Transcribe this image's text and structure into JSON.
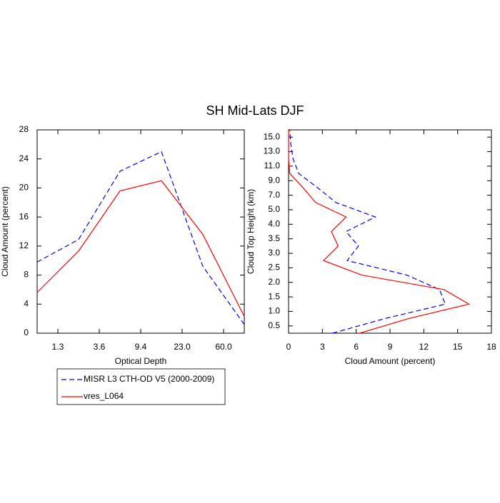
{
  "title": "SH Mid-Lats DJF",
  "chart_data": [
    {
      "type": "line",
      "orientation": "vertical",
      "xlabel": "Optical Depth",
      "ylabel": "Cloud Amount (percent)",
      "xlim": [
        0,
        5
      ],
      "xticks": [
        {
          "value": 0.5,
          "label": "1.3"
        },
        {
          "value": 1.5,
          "label": "3.6"
        },
        {
          "value": 2.5,
          "label": "9.4"
        },
        {
          "value": 3.5,
          "label": "23.0"
        },
        {
          "value": 4.5,
          "label": "60.0"
        }
      ],
      "ylim": [
        0,
        28
      ],
      "yticks": [
        0,
        4,
        8,
        12,
        16,
        20,
        24,
        28
      ],
      "grid": false,
      "series": [
        {
          "name": "MISR L3 CTH-OD V5 (2000-2009)",
          "color": "#0000ff",
          "linestyle": "dashed",
          "values": [
            9.8,
            12.9,
            22.3,
            25.0,
            9.2,
            1.2
          ]
        },
        {
          "name": "vres_L064",
          "color": "#ff0000",
          "linestyle": "solid",
          "values": [
            5.6,
            11.3,
            19.6,
            21.0,
            13.6,
            2.3
          ]
        }
      ]
    },
    {
      "type": "line",
      "orientation": "horizontal",
      "xlabel": "Cloud Amount (percent)",
      "ylabel": "Cloud Top Height (km)",
      "xlim": [
        0,
        18
      ],
      "xticks": [
        0,
        3,
        6,
        9,
        12,
        15,
        18
      ],
      "ylim": [
        0,
        14
      ],
      "yticks": [
        {
          "value": 0.5,
          "label": "0.5"
        },
        {
          "value": 1.5,
          "label": "1.0"
        },
        {
          "value": 2.5,
          "label": "1.5"
        },
        {
          "value": 3.5,
          "label": "2.0"
        },
        {
          "value": 4.5,
          "label": "2.5"
        },
        {
          "value": 5.5,
          "label": "3.0"
        },
        {
          "value": 6.5,
          "label": "3.5"
        },
        {
          "value": 7.5,
          "label": "4.0"
        },
        {
          "value": 8.5,
          "label": "5.0"
        },
        {
          "value": 9.5,
          "label": "7.0"
        },
        {
          "value": 10.5,
          "label": "9.0"
        },
        {
          "value": 11.5,
          "label": "11.0"
        },
        {
          "value": 12.5,
          "label": "13.0"
        },
        {
          "value": 13.5,
          "label": "15.0"
        }
      ],
      "grid": false,
      "series": [
        {
          "color": "#0000ff",
          "linestyle": "dashed",
          "values": [
            3.9,
            8.5,
            13.9,
            13.4,
            10.5,
            5.2,
            6.2,
            5.1,
            7.7,
            4.2,
            2.6,
            0.9,
            0.4,
            0.2,
            0.1
          ]
        },
        {
          "color": "#ff0000",
          "linestyle": "solid",
          "values": [
            6.3,
            10.6,
            16.0,
            13.8,
            6.5,
            3.1,
            4.4,
            3.8,
            5.1,
            2.4,
            1.3,
            0.1,
            0,
            0,
            0
          ]
        }
      ]
    }
  ]
}
